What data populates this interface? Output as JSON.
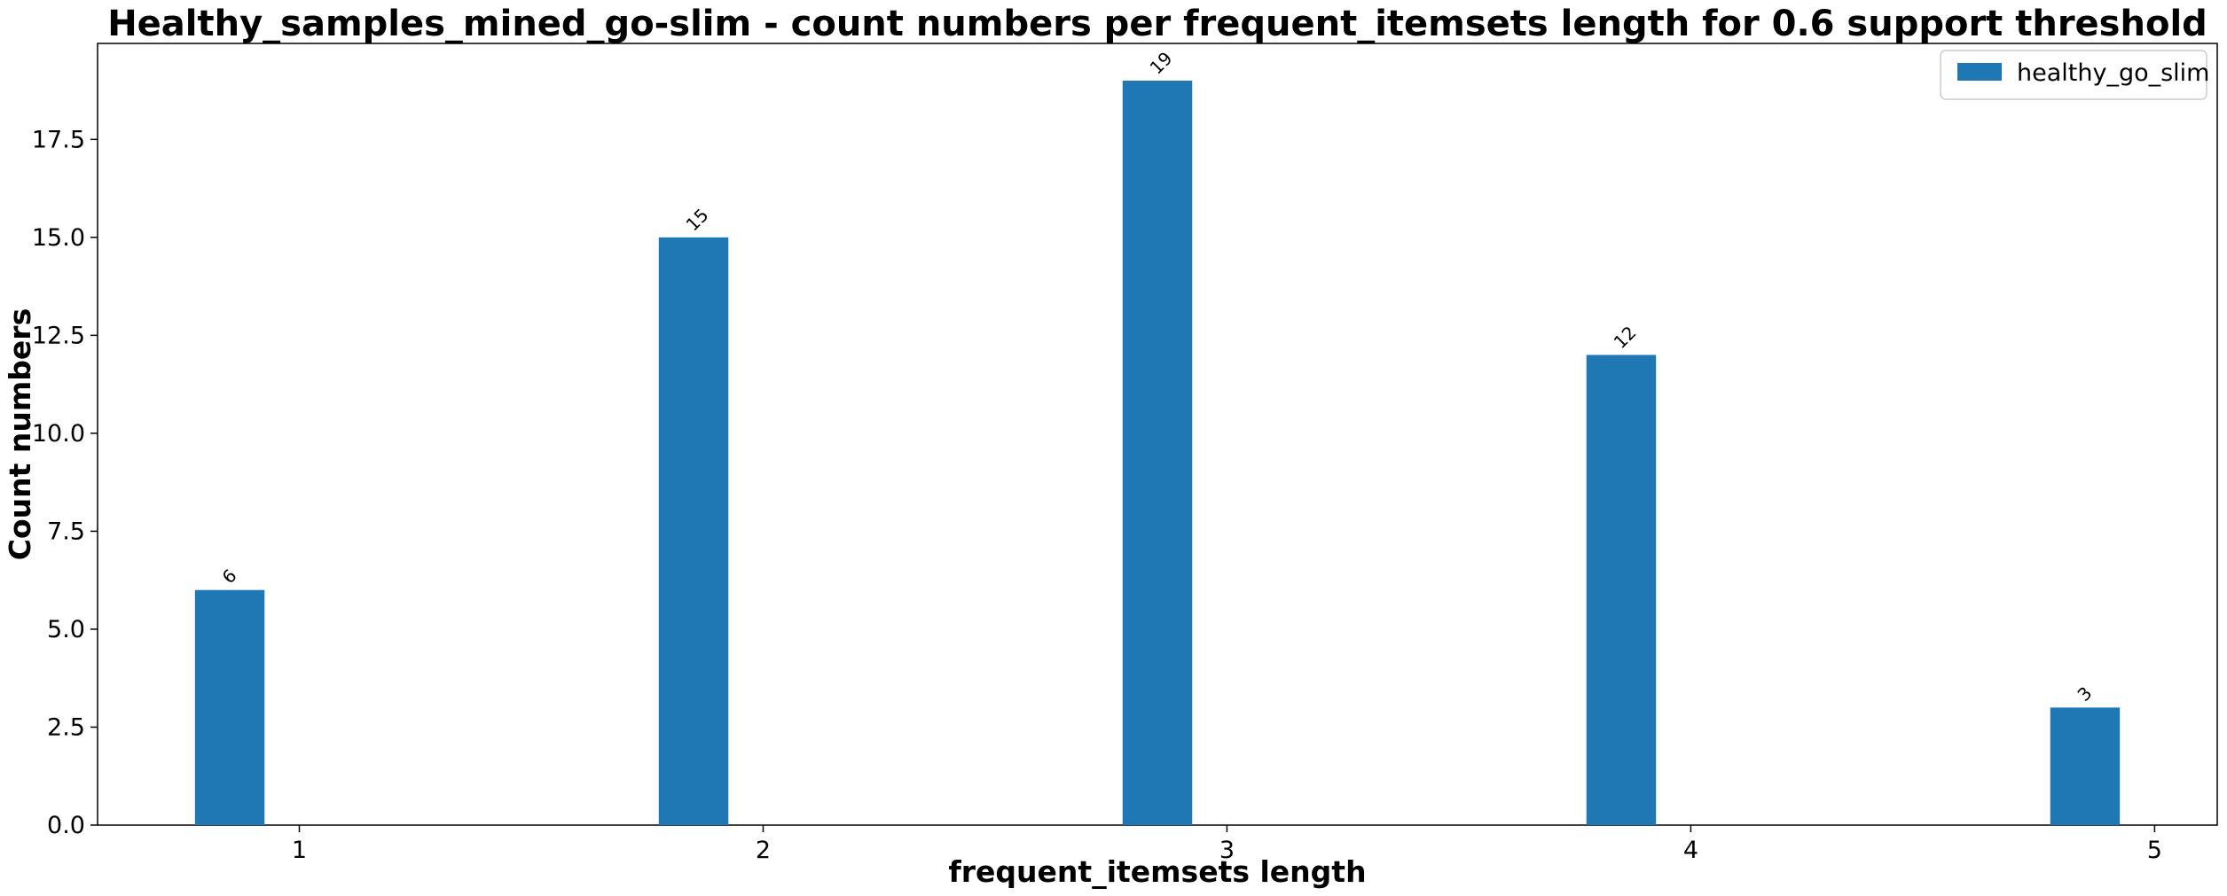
{
  "chart_data": {
    "type": "bar",
    "title": "Healthy_samples_mined_go-slim - count numbers per frequent_itemsets length for 0.6 support threshold",
    "xlabel": "frequent_itemsets length",
    "ylabel": "Count numbers",
    "categories": [
      "1",
      "2",
      "3",
      "4",
      "5"
    ],
    "series": [
      {
        "name": "healthy_go_slim",
        "values": [
          6,
          15,
          19,
          12,
          3
        ],
        "color": "#1f77b4"
      }
    ],
    "ylim": [
      0,
      19.95
    ],
    "yticks": [
      "0.0",
      "2.5",
      "5.0",
      "7.5",
      "10.0",
      "12.5",
      "15.0",
      "17.5"
    ],
    "ytick_values": [
      0,
      2.5,
      5,
      7.5,
      10,
      12.5,
      15,
      17.5
    ],
    "grid": false,
    "legend_position": "top-right"
  }
}
